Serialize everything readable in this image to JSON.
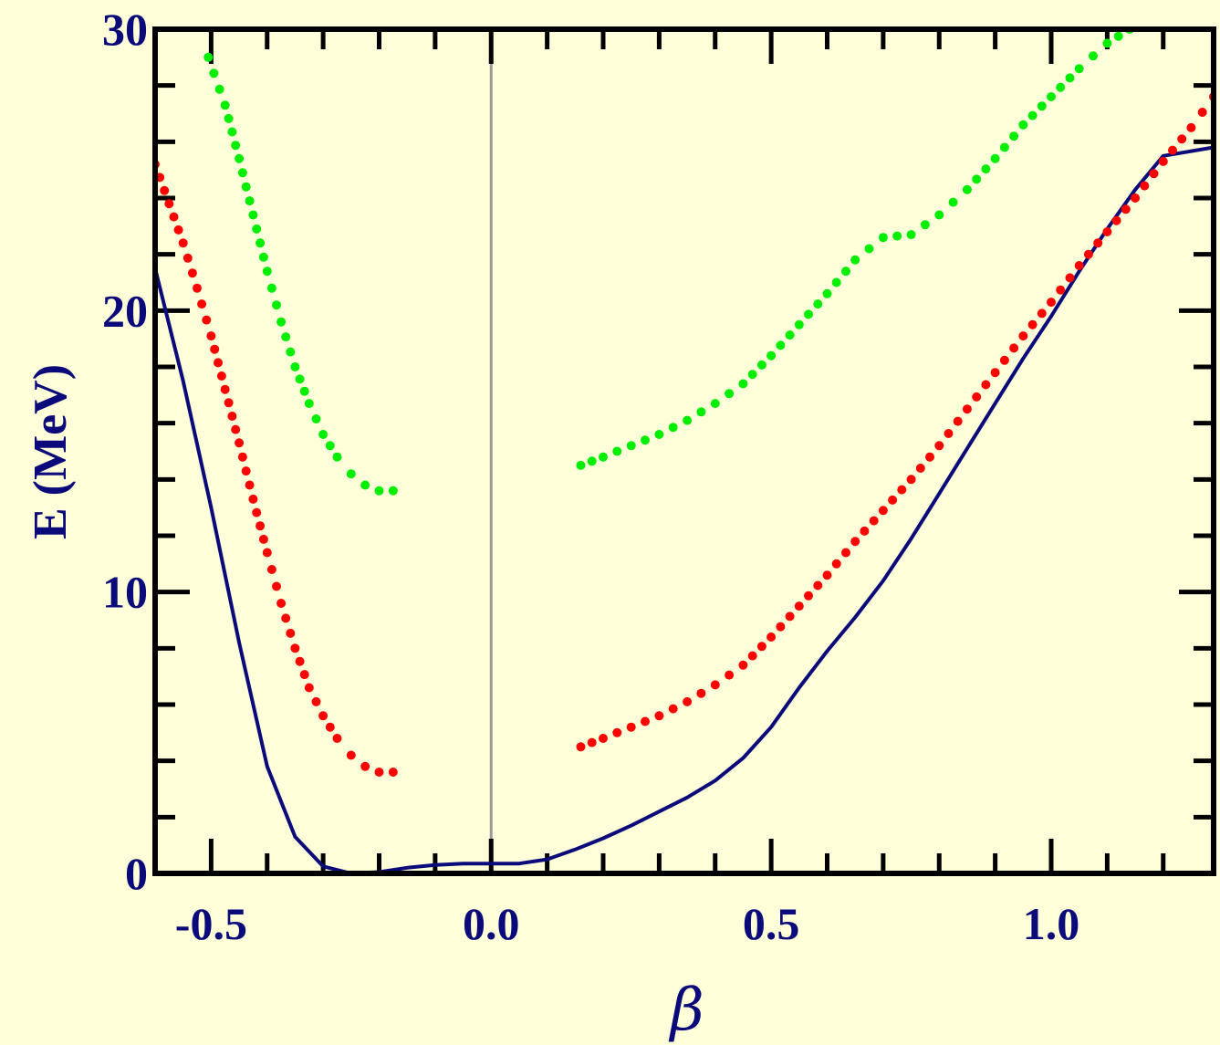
{
  "colors": {
    "background": "#ffffd9",
    "axis_text": "#0a0a7a",
    "frame": "#000000",
    "zero_line": "#9a9a9a",
    "ground": "#0a0a7a",
    "first_excited": "#ff0000",
    "second_excited": "#00ee00"
  },
  "chart_data": {
    "type": "line",
    "title": "",
    "xlabel": "β",
    "ylabel": "E (MeV)",
    "xlim": [
      -0.6,
      1.29
    ],
    "ylim": [
      0,
      30
    ],
    "x_ticks": [
      {
        "value": -0.5,
        "label": "-0.5"
      },
      {
        "value": 0.0,
        "label": "0.0"
      },
      {
        "value": 0.5,
        "label": "0.5"
      },
      {
        "value": 1.0,
        "label": "1.0"
      }
    ],
    "x_minor_ticks": [
      -0.4,
      -0.3,
      -0.2,
      -0.1,
      0.1,
      0.2,
      0.3,
      0.4,
      0.6,
      0.7,
      0.8,
      0.9,
      1.1,
      1.2
    ],
    "y_ticks": [
      {
        "value": 0,
        "label": "0"
      },
      {
        "value": 10,
        "label": "10"
      },
      {
        "value": 20,
        "label": "20"
      },
      {
        "value": 30,
        "label": "30"
      }
    ],
    "y_minor_ticks": [
      2,
      4,
      6,
      8,
      12,
      14,
      16,
      18,
      22,
      24,
      26,
      28
    ],
    "reference_line_x": 0.0,
    "series": [
      {
        "style": "solid",
        "color": "#0a0a7a",
        "points": [
          [
            -0.6,
            21.5
          ],
          [
            -0.55,
            17.5
          ],
          [
            -0.5,
            13.0
          ],
          [
            -0.45,
            8.2
          ],
          [
            -0.4,
            3.8
          ],
          [
            -0.35,
            1.3
          ],
          [
            -0.3,
            0.25
          ],
          [
            -0.25,
            0.0
          ],
          [
            -0.2,
            0.05
          ],
          [
            -0.15,
            0.2
          ],
          [
            -0.1,
            0.3
          ],
          [
            -0.05,
            0.35
          ],
          [
            0.0,
            0.35
          ],
          [
            0.05,
            0.35
          ],
          [
            0.1,
            0.5
          ],
          [
            0.15,
            0.85
          ],
          [
            0.2,
            1.25
          ],
          [
            0.25,
            1.7
          ],
          [
            0.3,
            2.2
          ],
          [
            0.35,
            2.7
          ],
          [
            0.4,
            3.3
          ],
          [
            0.45,
            4.1
          ],
          [
            0.5,
            5.2
          ],
          [
            0.55,
            6.6
          ],
          [
            0.6,
            7.9
          ],
          [
            0.65,
            9.1
          ],
          [
            0.7,
            10.4
          ],
          [
            0.75,
            11.9
          ],
          [
            0.8,
            13.5
          ],
          [
            0.85,
            15.1
          ],
          [
            0.9,
            16.7
          ],
          [
            0.95,
            18.3
          ],
          [
            1.0,
            19.8
          ],
          [
            1.05,
            21.4
          ],
          [
            1.1,
            22.9
          ],
          [
            1.15,
            24.3
          ],
          [
            1.2,
            25.5
          ],
          [
            1.29,
            25.8
          ]
        ]
      },
      {
        "style": "dotted",
        "color": "#ff0000",
        "segments": [
          [
            [
              -0.6,
              25.2
            ],
            [
              -0.575,
              23.8
            ],
            [
              -0.55,
              22.4
            ],
            [
              -0.525,
              20.8
            ],
            [
              -0.5,
              19.1
            ],
            [
              -0.475,
              17.2
            ],
            [
              -0.45,
              15.3
            ],
            [
              -0.425,
              13.3
            ],
            [
              -0.4,
              11.4
            ],
            [
              -0.375,
              9.6
            ],
            [
              -0.35,
              8.0
            ],
            [
              -0.325,
              6.6
            ],
            [
              -0.3,
              5.6
            ],
            [
              -0.275,
              4.8
            ],
            [
              -0.25,
              4.2
            ],
            [
              -0.225,
              3.8
            ],
            [
              -0.2,
              3.6
            ],
            [
              -0.175,
              3.6
            ]
          ],
          [
            [
              0.16,
              4.5
            ],
            [
              0.2,
              4.8
            ],
            [
              0.25,
              5.2
            ],
            [
              0.3,
              5.6
            ],
            [
              0.35,
              6.1
            ],
            [
              0.4,
              6.7
            ],
            [
              0.45,
              7.4
            ],
            [
              0.5,
              8.4
            ],
            [
              0.55,
              9.5
            ],
            [
              0.6,
              10.6
            ],
            [
              0.65,
              11.8
            ],
            [
              0.7,
              12.9
            ],
            [
              0.75,
              14.0
            ],
            [
              0.8,
              15.2
            ],
            [
              0.85,
              16.5
            ],
            [
              0.9,
              17.8
            ],
            [
              0.95,
              19.1
            ],
            [
              1.0,
              20.3
            ],
            [
              1.05,
              21.6
            ],
            [
              1.1,
              22.8
            ],
            [
              1.15,
              24.0
            ],
            [
              1.2,
              25.3
            ],
            [
              1.25,
              26.5
            ],
            [
              1.29,
              27.6
            ]
          ]
        ]
      },
      {
        "style": "dotted",
        "color": "#00ee00",
        "segments": [
          [
            [
              -0.505,
              29.0
            ],
            [
              -0.475,
              27.3
            ],
            [
              -0.45,
              25.4
            ],
            [
              -0.425,
              23.4
            ],
            [
              -0.4,
              21.4
            ],
            [
              -0.375,
              19.6
            ],
            [
              -0.35,
              18.0
            ],
            [
              -0.325,
              16.7
            ],
            [
              -0.3,
              15.6
            ],
            [
              -0.275,
              14.8
            ],
            [
              -0.25,
              14.2
            ],
            [
              -0.225,
              13.8
            ],
            [
              -0.2,
              13.6
            ],
            [
              -0.175,
              13.6
            ]
          ],
          [
            [
              0.16,
              14.5
            ],
            [
              0.2,
              14.8
            ],
            [
              0.25,
              15.2
            ],
            [
              0.3,
              15.6
            ],
            [
              0.35,
              16.1
            ],
            [
              0.4,
              16.7
            ],
            [
              0.45,
              17.4
            ],
            [
              0.5,
              18.4
            ],
            [
              0.55,
              19.5
            ],
            [
              0.6,
              20.6
            ],
            [
              0.65,
              21.8
            ],
            [
              0.7,
              22.6
            ],
            [
              0.75,
              22.7
            ],
            [
              0.8,
              23.4
            ],
            [
              0.85,
              24.3
            ],
            [
              0.9,
              25.4
            ],
            [
              0.95,
              26.6
            ],
            [
              1.0,
              27.6
            ],
            [
              1.05,
              28.6
            ],
            [
              1.1,
              29.5
            ],
            [
              1.14,
              30.0
            ]
          ]
        ]
      }
    ]
  }
}
